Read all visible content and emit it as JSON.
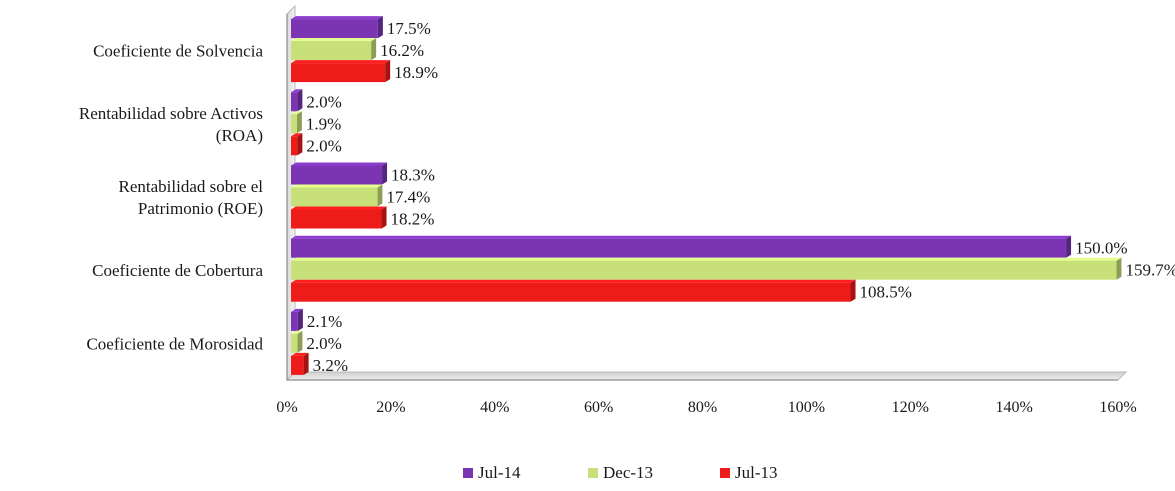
{
  "chart_data": {
    "type": "bar",
    "orientation": "horizontal",
    "title": "",
    "xlabel": "",
    "ylabel": "",
    "categories": [
      [
        "Coeficiente de Solvencia"
      ],
      [
        "Rentabilidad sobre Activos",
        "(ROA)"
      ],
      [
        "Rentabilidad sobre el",
        "Patrimonio (ROE)"
      ],
      [
        "Coeficiente de Cobertura"
      ],
      [
        "Coeficiente de Morosidad"
      ]
    ],
    "series": [
      {
        "name": "Jul-14",
        "color": "#7b35b3",
        "values": [
          17.5,
          2.0,
          18.3,
          150.0,
          2.1
        ],
        "labels": [
          "17.5%",
          "2.0%",
          "18.3%",
          "150.0%",
          "2.1%"
        ]
      },
      {
        "name": "Dec-13",
        "color": "#c8e07a",
        "values": [
          16.2,
          1.9,
          17.4,
          159.7,
          2.0
        ],
        "labels": [
          "16.2%",
          "1.9%",
          "17.4%",
          "159.7%",
          "2.0%"
        ]
      },
      {
        "name": "Jul-13",
        "color": "#ee1b1b",
        "values": [
          18.9,
          2.0,
          18.2,
          108.5,
          3.2
        ],
        "labels": [
          "18.9%",
          "2.0%",
          "18.2%",
          "108.5%",
          "3.2%"
        ]
      }
    ],
    "xlim": [
      0,
      160
    ],
    "xticks": [
      "0%",
      "20%",
      "40%",
      "60%",
      "80%",
      "100%",
      "120%",
      "140%",
      "160%"
    ],
    "legend_position": "bottom",
    "grid": false
  }
}
